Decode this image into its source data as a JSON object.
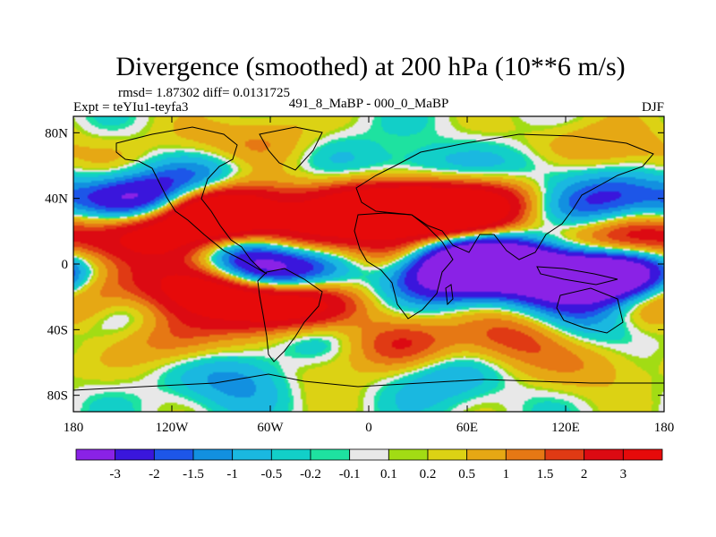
{
  "chart_data": {
    "type": "heatmap",
    "title": "Divergence (smoothed) at 200 hPa (10**6 m/s)",
    "stats": "rmsd= 1.87302 diff= 0.0131725",
    "experiment": "Expt = teYIu1-teyfa3",
    "comparison": "491_8_MaBP - 000_0_MaBP",
    "season": "DJF",
    "x_axis": {
      "range": [
        -180,
        180
      ],
      "ticks": [
        -180,
        -120,
        -60,
        0,
        60,
        120,
        180
      ],
      "tick_labels": [
        "180",
        "120W",
        "60W",
        "0",
        "60E",
        "120E",
        "180"
      ]
    },
    "y_axis": {
      "range": [
        -90,
        90
      ],
      "ticks": [
        80,
        40,
        0,
        -40,
        -80
      ],
      "tick_labels": [
        "80N",
        "40N",
        "0",
        "40S",
        "80S"
      ]
    },
    "colorbar": {
      "levels": [
        -3,
        -2,
        -1.5,
        -1,
        -0.5,
        -0.2,
        -0.1,
        0.1,
        0.2,
        0.5,
        1,
        1.5,
        2,
        3
      ],
      "labels": [
        "-3",
        "-2",
        "-1.5",
        "-1",
        "-0.5",
        "-0.2",
        "-0.1",
        "0.1",
        "0.2",
        "0.5",
        "1",
        "1.5",
        "2",
        "3"
      ],
      "colors": [
        "#8a22e6",
        "#3a16dc",
        "#1d56e8",
        "#1290e0",
        "#1ab8e0",
        "#12cfc8",
        "#1ee2a0",
        "#e8e8e8",
        "#a2dc14",
        "#dcd214",
        "#e6a814",
        "#e67814",
        "#e03a14",
        "#dc0a12",
        "#e60a0a"
      ]
    },
    "blobs": [
      {
        "lon": -150,
        "lat": 22,
        "value": 2.2
      },
      {
        "lon": -130,
        "lat": 12,
        "value": 2.6
      },
      {
        "lon": -110,
        "lat": 30,
        "value": 2.8
      },
      {
        "lon": -92,
        "lat": 35,
        "value": 3.2
      },
      {
        "lon": -75,
        "lat": 30,
        "value": 2.4
      },
      {
        "lon": -160,
        "lat": -8,
        "value": 2.0
      },
      {
        "lon": -112,
        "lat": -12,
        "value": 3.0
      },
      {
        "lon": -85,
        "lat": -18,
        "value": 2.6
      },
      {
        "lon": -60,
        "lat": -28,
        "value": 3.0
      },
      {
        "lon": -35,
        "lat": -24,
        "value": 3.0
      },
      {
        "lon": -40,
        "lat": 12,
        "value": 2.8
      },
      {
        "lon": -18,
        "lat": 32,
        "value": 2.4
      },
      {
        "lon": 10,
        "lat": 34,
        "value": 3.4
      },
      {
        "lon": 35,
        "lat": 36,
        "value": 3.3
      },
      {
        "lon": 55,
        "lat": 28,
        "value": 3.0
      },
      {
        "lon": 75,
        "lat": 40,
        "value": 2.6
      },
      {
        "lon": 20,
        "lat": 5,
        "value": 2.6
      },
      {
        "lon": 110,
        "lat": 10,
        "value": 2.5
      },
      {
        "lon": 130,
        "lat": 22,
        "value": 2.4
      },
      {
        "lon": 162,
        "lat": 14,
        "value": 2.8
      },
      {
        "lon": 172,
        "lat": -22,
        "value": 2.4
      },
      {
        "lon": 20,
        "lat": -48,
        "value": 2.2
      },
      {
        "lon": 90,
        "lat": -45,
        "value": 1.8
      },
      {
        "lon": -120,
        "lat": -45,
        "value": 1.6
      },
      {
        "lon": -150,
        "lat": 55,
        "value": 0.8
      },
      {
        "lon": -100,
        "lat": 68,
        "value": 0.8
      },
      {
        "lon": -60,
        "lat": 75,
        "value": 1.0
      },
      {
        "lon": 10,
        "lat": 62,
        "value": 0.8
      },
      {
        "lon": 110,
        "lat": 72,
        "value": 0.7
      },
      {
        "lon": 150,
        "lat": 68,
        "value": 1.0
      },
      {
        "lon": 140,
        "lat": -62,
        "value": 0.9
      },
      {
        "lon": -30,
        "lat": -65,
        "value": 0.8
      },
      {
        "lon": -150,
        "lat": 38,
        "value": -2.6
      },
      {
        "lon": -128,
        "lat": 38,
        "value": -3.0
      },
      {
        "lon": -100,
        "lat": 52,
        "value": -2.2
      },
      {
        "lon": -150,
        "lat": 0,
        "value": -1.6
      },
      {
        "lon": -75,
        "lat": 2,
        "value": -3.2
      },
      {
        "lon": -55,
        "lat": -5,
        "value": -3.0
      },
      {
        "lon": -35,
        "lat": -40,
        "value": -1.8
      },
      {
        "lon": -30,
        "lat": 2,
        "value": -1.6
      },
      {
        "lon": 20,
        "lat": 55,
        "value": -1.8
      },
      {
        "lon": 38,
        "lat": -6,
        "value": -3.6
      },
      {
        "lon": 55,
        "lat": 5,
        "value": -3.0
      },
      {
        "lon": 80,
        "lat": 0,
        "value": -3.4
      },
      {
        "lon": 100,
        "lat": 3,
        "value": -3.0
      },
      {
        "lon": 118,
        "lat": -8,
        "value": -3.4
      },
      {
        "lon": 145,
        "lat": -8,
        "value": -3.6
      },
      {
        "lon": 168,
        "lat": -6,
        "value": -3.0
      },
      {
        "lon": 128,
        "lat": 26,
        "value": -3.0
      },
      {
        "lon": 150,
        "lat": 40,
        "value": -2.0
      },
      {
        "lon": 60,
        "lat": 48,
        "value": -1.0
      },
      {
        "lon": 140,
        "lat": -34,
        "value": -1.4
      },
      {
        "lon": -140,
        "lat": -30,
        "value": -1.0
      },
      {
        "lon": -80,
        "lat": -70,
        "value": -1.4
      },
      {
        "lon": 40,
        "lat": -68,
        "value": -1.2
      },
      {
        "lon": 100,
        "lat": 60,
        "value": -1.0
      },
      {
        "lon": -20,
        "lat": 68,
        "value": -0.6
      }
    ],
    "features": "continent outlines (coastlines) drawn over shading"
  }
}
